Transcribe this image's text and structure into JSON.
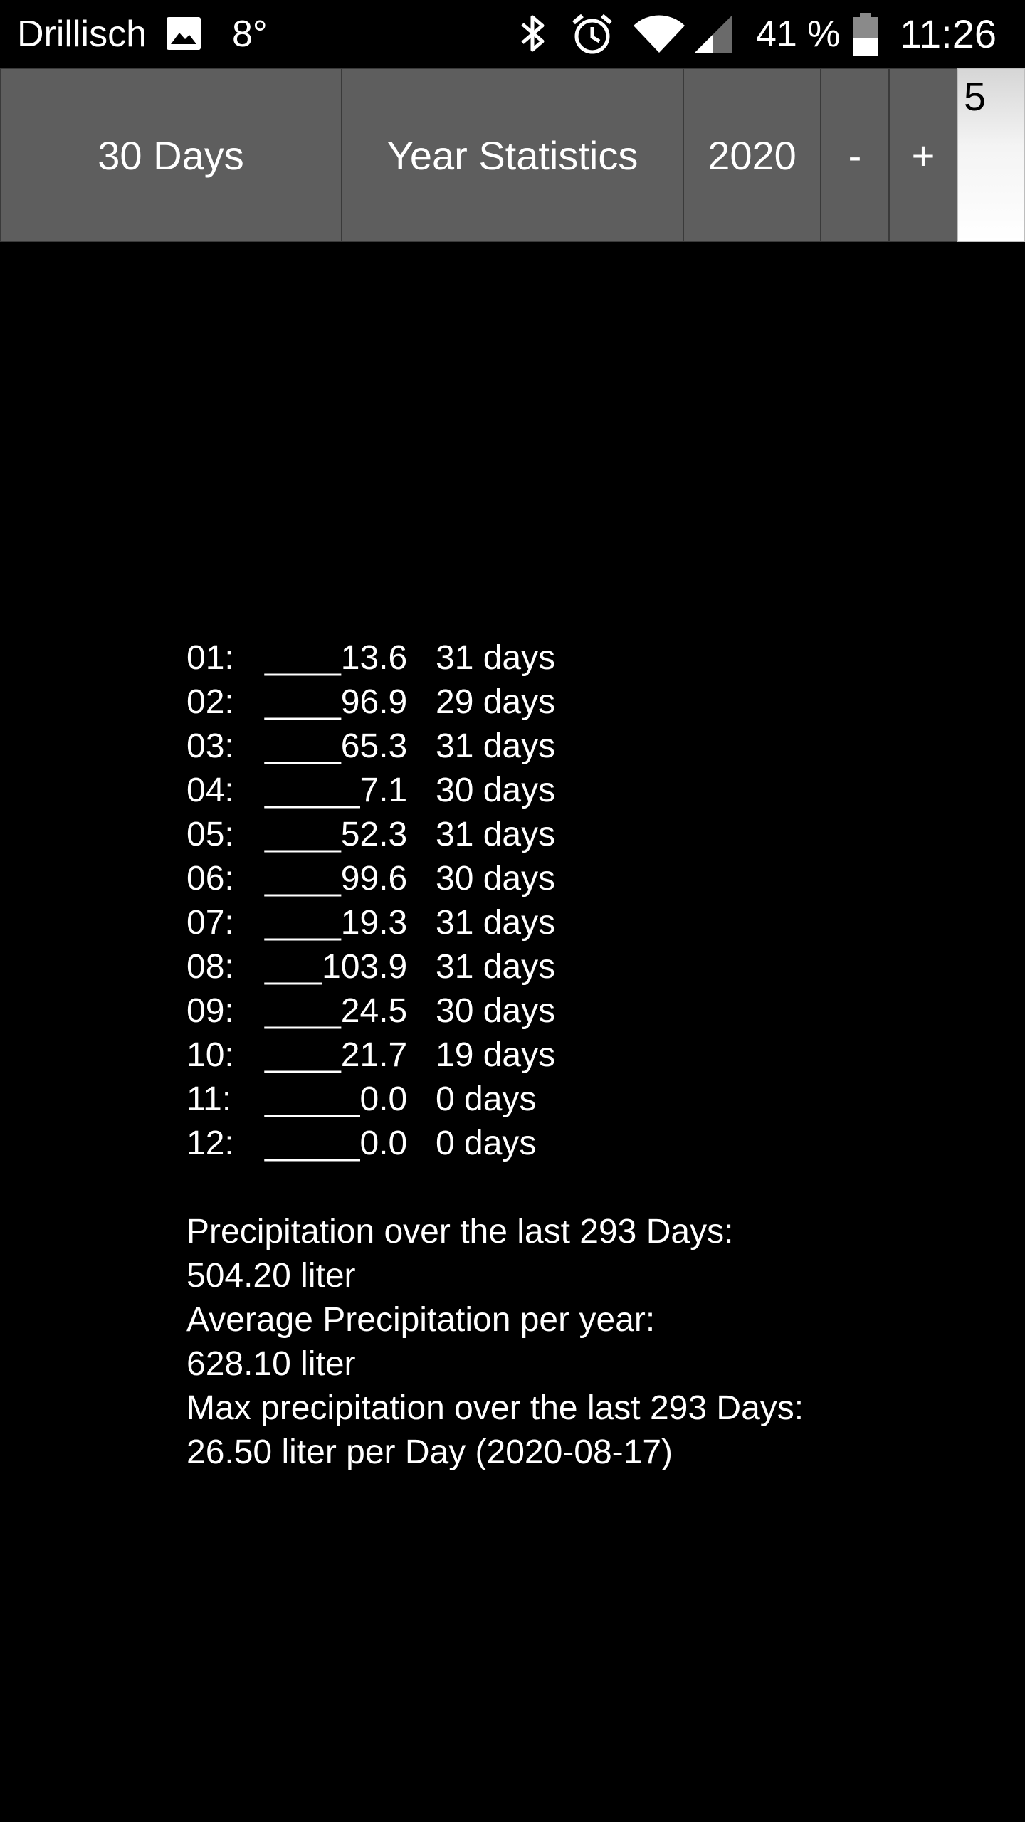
{
  "status_bar": {
    "carrier": "Drillisch",
    "temperature": "8°",
    "battery_percent": "41 %",
    "time": "11:26",
    "icons": [
      "gallery-icon",
      "bluetooth-icon",
      "alarm-icon",
      "wifi-icon",
      "signal-icon",
      "battery-icon"
    ]
  },
  "toolbar": {
    "days_button": "30 Days",
    "year_stats_button": "Year Statistics",
    "year_value": "2020",
    "minus_button": "-",
    "plus_button": "+",
    "input_value": "5"
  },
  "months": [
    {
      "label": "01:",
      "amount": "____13.6",
      "days": "31 days"
    },
    {
      "label": "02:",
      "amount": "____96.9",
      "days": "29 days"
    },
    {
      "label": "03:",
      "amount": "____65.3",
      "days": "31 days"
    },
    {
      "label": "04:",
      "amount": "_____7.1",
      "days": "30 days"
    },
    {
      "label": "05:",
      "amount": "____52.3",
      "days": "31 days"
    },
    {
      "label": "06:",
      "amount": "____99.6",
      "days": "30 days"
    },
    {
      "label": "07:",
      "amount": "____19.3",
      "days": "31 days"
    },
    {
      "label": "08:",
      "amount": "___103.9",
      "days": "31 days"
    },
    {
      "label": "09:",
      "amount": "____24.5",
      "days": "30 days"
    },
    {
      "label": "10:",
      "amount": "____21.7",
      "days": "19 days"
    },
    {
      "label": "11:",
      "amount": "_____0.0",
      "days": "0 days"
    },
    {
      "label": "12:",
      "amount": "_____0.0",
      "days": "0 days"
    }
  ],
  "summary": {
    "total_label": "Precipitation over the last 293 Days:",
    "total_value": "504.20 liter",
    "average_label": "Average Precipitation per year:",
    "average_value": "628.10 liter",
    "max_label": "Max precipitation over the last 293 Days:",
    "max_value": "26.50 liter per Day (2020-08-17)"
  }
}
